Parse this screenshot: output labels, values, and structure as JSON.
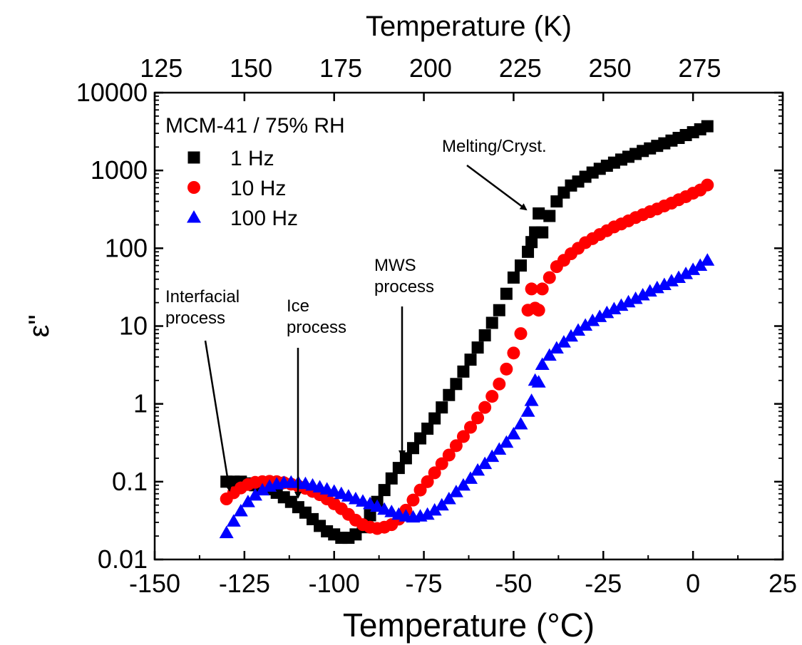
{
  "chart_data": {
    "type": "scatter",
    "xlabel": "Temperature (°C)",
    "x2label": "Temperature (K)",
    "ylabel": "ε\"",
    "xlim": [
      -150,
      25
    ],
    "x2lim": [
      123.15,
      298.15
    ],
    "ylim": [
      0.01,
      10000
    ],
    "yscale": "log",
    "xticks": [
      -150,
      -125,
      -100,
      -75,
      -50,
      -25,
      0,
      25
    ],
    "xtick_labels": [
      "-150",
      "-125",
      "-100",
      "-75",
      "-50",
      "-25",
      "0",
      "25"
    ],
    "x2ticks": [
      125,
      150,
      175,
      200,
      225,
      250,
      275
    ],
    "x2tick_labels": [
      "125",
      "150",
      "175",
      "200",
      "225",
      "250",
      "275"
    ],
    "yticks": [
      0.01,
      0.1,
      1,
      10,
      100,
      1000,
      10000
    ],
    "ytick_labels": [
      "0.01",
      "0.1",
      "1",
      "10",
      "100",
      "1000",
      "10000"
    ],
    "legend": {
      "title": "MCM-41 / 75% RH",
      "position": "top-left"
    },
    "grid": false,
    "series": [
      {
        "name": "1 Hz",
        "marker": "square",
        "color": "#000000",
        "x": [
          -130,
          -128,
          -126,
          -124,
          -122,
          -120,
          -118,
          -116,
          -114,
          -112,
          -110,
          -108,
          -106,
          -104,
          -102,
          -100,
          -98,
          -96,
          -94,
          -92,
          -90,
          -88,
          -86,
          -84,
          -82,
          -80,
          -78,
          -76,
          -74,
          -72,
          -70,
          -68,
          -66,
          -64,
          -62,
          -60,
          -58,
          -56,
          -54,
          -52,
          -50,
          -48,
          -46,
          -45,
          -44,
          -43,
          -42,
          -40,
          -38,
          -36,
          -34,
          -32,
          -30,
          -28,
          -26,
          -24,
          -22,
          -20,
          -18,
          -16,
          -14,
          -12,
          -10,
          -8,
          -6,
          -4,
          -2,
          0,
          2,
          4
        ],
        "y": [
          0.1,
          0.1,
          0.1,
          0.095,
          0.09,
          0.085,
          0.08,
          0.072,
          0.063,
          0.055,
          0.047,
          0.04,
          0.033,
          0.027,
          0.023,
          0.021,
          0.019,
          0.019,
          0.021,
          0.026,
          0.037,
          0.055,
          0.078,
          0.11,
          0.15,
          0.2,
          0.27,
          0.36,
          0.48,
          0.65,
          0.9,
          1.3,
          1.8,
          2.6,
          3.7,
          5.3,
          7.6,
          11,
          16,
          26,
          42,
          60,
          90,
          120,
          160,
          280,
          160,
          260,
          400,
          520,
          640,
          720,
          830,
          940,
          1050,
          1150,
          1260,
          1380,
          1500,
          1630,
          1780,
          1920,
          2070,
          2230,
          2420,
          2620,
          2850,
          3100,
          3380,
          3700
        ]
      },
      {
        "name": "10 Hz",
        "marker": "circle",
        "color": "#ff0000",
        "x": [
          -130,
          -128,
          -126,
          -124,
          -122,
          -120,
          -118,
          -116,
          -114,
          -112,
          -110,
          -108,
          -106,
          -104,
          -102,
          -100,
          -98,
          -96,
          -94,
          -92,
          -90,
          -88,
          -86,
          -84,
          -82,
          -80,
          -78,
          -76,
          -74,
          -72,
          -70,
          -68,
          -66,
          -64,
          -62,
          -60,
          -58,
          -56,
          -54,
          -52,
          -50,
          -48,
          -46,
          -45,
          -44,
          -43,
          -42,
          -40,
          -38,
          -36,
          -34,
          -32,
          -30,
          -28,
          -26,
          -24,
          -22,
          -20,
          -18,
          -16,
          -14,
          -12,
          -10,
          -8,
          -6,
          -4,
          -2,
          0,
          2,
          4
        ],
        "y": [
          0.06,
          0.072,
          0.083,
          0.092,
          0.098,
          0.1,
          0.101,
          0.1,
          0.097,
          0.093,
          0.088,
          0.082,
          0.075,
          0.068,
          0.06,
          0.052,
          0.045,
          0.038,
          0.032,
          0.028,
          0.026,
          0.025,
          0.026,
          0.028,
          0.033,
          0.043,
          0.058,
          0.078,
          0.1,
          0.13,
          0.17,
          0.22,
          0.29,
          0.38,
          0.5,
          0.66,
          0.9,
          1.25,
          1.8,
          2.8,
          4.5,
          8,
          16,
          30,
          17,
          16,
          30,
          42,
          58,
          70,
          85,
          100,
          118,
          133,
          150,
          168,
          188,
          205,
          225,
          248,
          270,
          295,
          320,
          350,
          380,
          420,
          460,
          510,
          560,
          650
        ]
      },
      {
        "name": "100 Hz",
        "marker": "triangle",
        "color": "#0000ff",
        "x": [
          -130,
          -128,
          -126,
          -124,
          -122,
          -120,
          -118,
          -116,
          -114,
          -112,
          -110,
          -108,
          -106,
          -104,
          -102,
          -100,
          -98,
          -96,
          -94,
          -92,
          -90,
          -88,
          -86,
          -84,
          -82,
          -80,
          -78,
          -76,
          -74,
          -72,
          -70,
          -68,
          -66,
          -64,
          -62,
          -60,
          -58,
          -56,
          -54,
          -52,
          -50,
          -48,
          -46,
          -45,
          -44,
          -43,
          -42,
          -40,
          -38,
          -36,
          -34,
          -32,
          -30,
          -28,
          -26,
          -24,
          -22,
          -20,
          -18,
          -16,
          -14,
          -12,
          -10,
          -8,
          -6,
          -4,
          -2,
          0,
          2,
          4
        ],
        "y": [
          0.022,
          0.031,
          0.042,
          0.055,
          0.067,
          0.078,
          0.087,
          0.093,
          0.097,
          0.098,
          0.097,
          0.094,
          0.09,
          0.085,
          0.08,
          0.075,
          0.07,
          0.065,
          0.06,
          0.056,
          0.052,
          0.048,
          0.044,
          0.041,
          0.038,
          0.036,
          0.035,
          0.036,
          0.038,
          0.043,
          0.05,
          0.06,
          0.074,
          0.09,
          0.11,
          0.14,
          0.17,
          0.21,
          0.26,
          0.32,
          0.41,
          0.55,
          0.8,
          1.1,
          2.0,
          1.9,
          3.2,
          4.2,
          5.2,
          6.2,
          7.4,
          8.8,
          10.2,
          11.7,
          13.2,
          14.8,
          16.6,
          18.4,
          20.4,
          22.5,
          25,
          28,
          31,
          34,
          38,
          42,
          47,
          53,
          60,
          70
        ]
      }
    ],
    "annotations": [
      {
        "lines": [
          "Interfacial",
          "process"
        ],
        "x": -130.5,
        "y": 0.11
      },
      {
        "lines": [
          "Ice",
          "process"
        ],
        "x": -110,
        "y": 0.1
      },
      {
        "lines": [
          "MWS",
          "process"
        ],
        "x": -81,
        "y": 0.2
      },
      {
        "lines": [
          "Melting/Cryst."
        ],
        "x": -46.5,
        "y": 300
      }
    ]
  }
}
